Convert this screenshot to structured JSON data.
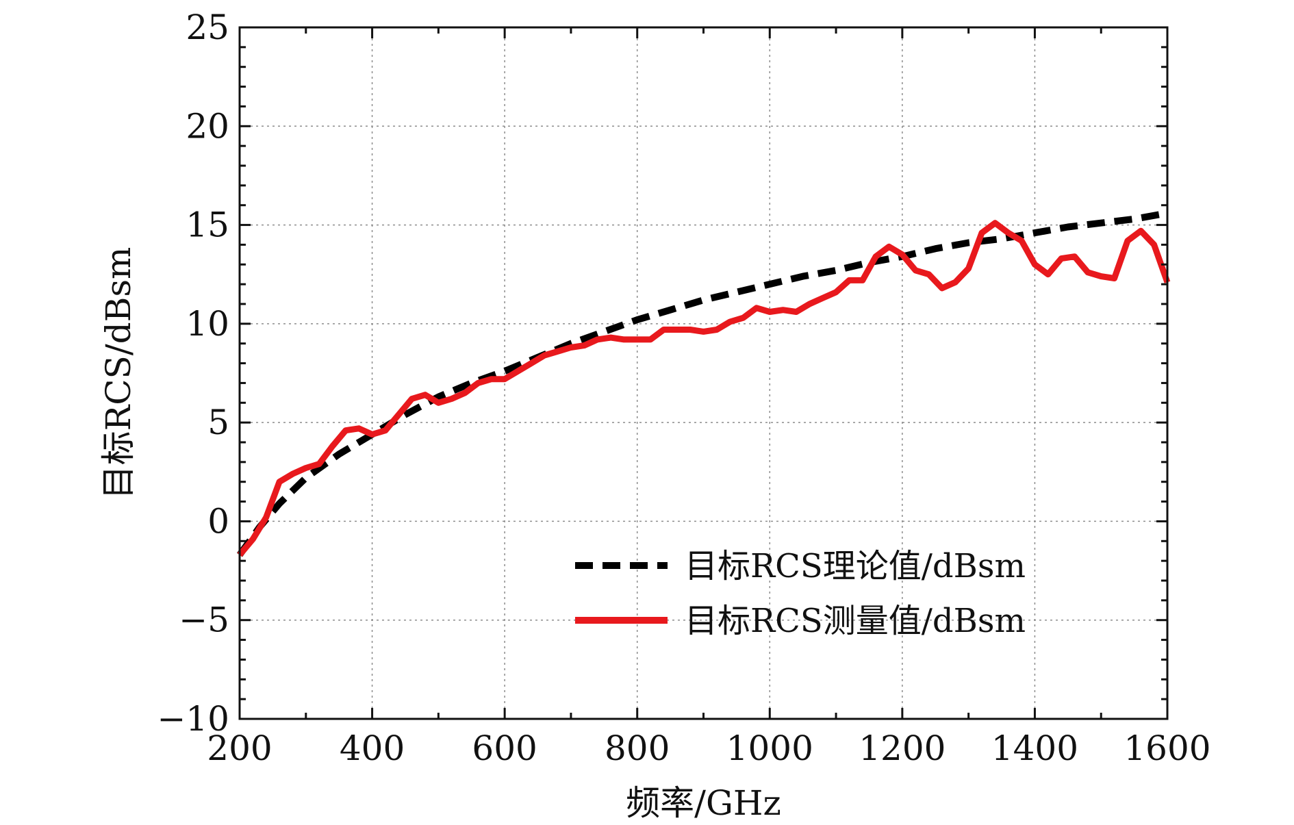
{
  "chart_data": {
    "type": "line",
    "title": "",
    "xlabel": "频率/GHz",
    "ylabel": "目标RCS/dBsm",
    "xlim": [
      200,
      1600
    ],
    "ylim": [
      -10,
      25
    ],
    "grid": true,
    "legend_position": "bottom-right",
    "x_ticks": [
      200,
      400,
      600,
      800,
      1000,
      1200,
      1400,
      1600
    ],
    "x_tick_labels": [
      "200",
      "400",
      "600",
      "800",
      "1000",
      "1200",
      "1400",
      "1600"
    ],
    "y_ticks": [
      -10,
      -5,
      0,
      5,
      10,
      15,
      20,
      25
    ],
    "y_tick_labels": [
      "−10",
      "−5",
      "0",
      "5",
      "10",
      "15",
      "20",
      "25"
    ],
    "series": [
      {
        "name": "目标RCS理论值/dBsm",
        "color": "#000000",
        "style": "dashed",
        "x": [
          200,
          230,
          260,
          300,
          350,
          400,
          450,
          500,
          550,
          600,
          650,
          700,
          750,
          800,
          850,
          900,
          950,
          1000,
          1050,
          1100,
          1150,
          1200,
          1250,
          1300,
          1350,
          1400,
          1450,
          1500,
          1550,
          1600
        ],
        "y": [
          -1.7,
          -0.3,
          0.9,
          2.2,
          3.4,
          4.4,
          5.4,
          6.3,
          7.0,
          7.6,
          8.3,
          9.0,
          9.6,
          10.2,
          10.7,
          11.2,
          11.6,
          12.0,
          12.4,
          12.7,
          13.1,
          13.4,
          13.8,
          14.1,
          14.3,
          14.6,
          14.9,
          15.1,
          15.3,
          15.6
        ]
      },
      {
        "name": "目标RCS测量值/dBsm",
        "color": "#e8191d",
        "style": "solid",
        "x": [
          200,
          220,
          240,
          260,
          280,
          300,
          320,
          340,
          360,
          380,
          400,
          420,
          440,
          460,
          480,
          500,
          520,
          540,
          560,
          580,
          600,
          620,
          640,
          660,
          680,
          700,
          720,
          740,
          760,
          780,
          800,
          820,
          840,
          860,
          880,
          900,
          920,
          940,
          960,
          980,
          1000,
          1020,
          1040,
          1060,
          1080,
          1100,
          1120,
          1140,
          1160,
          1180,
          1200,
          1220,
          1240,
          1260,
          1280,
          1300,
          1320,
          1340,
          1360,
          1380,
          1400,
          1420,
          1440,
          1460,
          1480,
          1500,
          1520,
          1540,
          1560,
          1580,
          1600
        ],
        "y": [
          -1.7,
          -0.9,
          0.2,
          2.0,
          2.4,
          2.7,
          2.9,
          3.8,
          4.6,
          4.7,
          4.4,
          4.6,
          5.4,
          6.2,
          6.4,
          6.0,
          6.2,
          6.5,
          7.0,
          7.2,
          7.2,
          7.6,
          8.0,
          8.4,
          8.6,
          8.8,
          8.9,
          9.2,
          9.3,
          9.2,
          9.2,
          9.2,
          9.7,
          9.7,
          9.7,
          9.6,
          9.7,
          10.1,
          10.3,
          10.8,
          10.6,
          10.7,
          10.6,
          11.0,
          11.3,
          11.6,
          12.2,
          12.2,
          13.4,
          13.9,
          13.5,
          12.7,
          12.5,
          11.8,
          12.1,
          12.8,
          14.6,
          15.1,
          14.6,
          14.2,
          13.0,
          12.5,
          13.3,
          13.4,
          12.6,
          12.4,
          12.3,
          14.2,
          14.7,
          14.0,
          12.1
        ]
      }
    ]
  }
}
